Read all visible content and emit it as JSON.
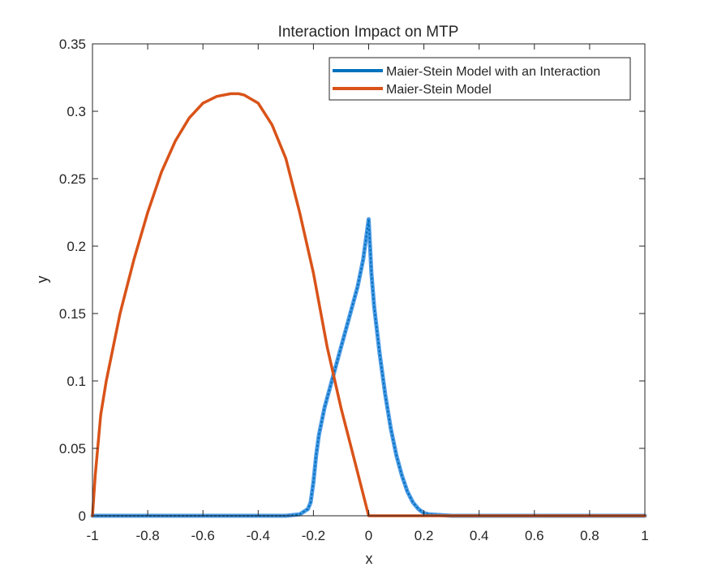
{
  "chart_data": {
    "type": "line",
    "title": "Interaction Impact on MTP",
    "xlabel": "x",
    "ylabel": "y",
    "xlim": [
      -1,
      1
    ],
    "ylim": [
      0,
      0.35
    ],
    "xticks": [
      -1,
      -0.8,
      -0.6,
      -0.4,
      -0.2,
      0,
      0.2,
      0.4,
      0.6,
      0.8,
      1
    ],
    "xtick_labels": [
      "-1",
      "-0.8",
      "-0.6",
      "-0.4",
      "-0.2",
      "0",
      "0.2",
      "0.4",
      "0.6",
      "0.8",
      "1"
    ],
    "yticks": [
      0,
      0.05,
      0.1,
      0.15,
      0.2,
      0.25,
      0.3,
      0.35
    ],
    "ytick_labels": [
      "0",
      "0.05",
      "0.1",
      "0.15",
      "0.2",
      "0.25",
      "0.3",
      "0.35"
    ],
    "grid": false,
    "legend_position": "top-right",
    "series": [
      {
        "name": "Maier-Stein Model with an Interaction",
        "color": "#0072BD",
        "scatter_color": "#4D9BE6",
        "x": [
          -1,
          -0.8,
          -0.6,
          -0.4,
          -0.3,
          -0.25,
          -0.22,
          -0.21,
          -0.2,
          -0.19,
          -0.18,
          -0.16,
          -0.14,
          -0.12,
          -0.1,
          -0.08,
          -0.06,
          -0.04,
          -0.02,
          -0.01,
          0,
          0.005,
          0.01,
          0.02,
          0.04,
          0.06,
          0.08,
          0.1,
          0.12,
          0.14,
          0.16,
          0.18,
          0.2,
          0.22,
          0.3,
          0.5,
          0.7,
          1
        ],
        "y": [
          0,
          0,
          0,
          0,
          0,
          0.001,
          0.005,
          0.01,
          0.025,
          0.045,
          0.06,
          0.08,
          0.095,
          0.11,
          0.125,
          0.14,
          0.155,
          0.17,
          0.19,
          0.205,
          0.22,
          0.2,
          0.18,
          0.155,
          0.12,
          0.09,
          0.065,
          0.045,
          0.03,
          0.018,
          0.01,
          0.005,
          0.002,
          0.001,
          0,
          0,
          0,
          0
        ]
      },
      {
        "name": "Maier-Stein Model",
        "color": "#D95319",
        "x": [
          -1,
          -0.99,
          -0.97,
          -0.95,
          -0.9,
          -0.85,
          -0.8,
          -0.75,
          -0.7,
          -0.65,
          -0.6,
          -0.55,
          -0.5,
          -0.47,
          -0.45,
          -0.4,
          -0.35,
          -0.3,
          -0.25,
          -0.2,
          -0.15,
          -0.1,
          -0.05,
          0,
          0.2,
          0.4,
          0.6,
          0.8,
          1
        ],
        "y": [
          0,
          0.03,
          0.075,
          0.1,
          0.15,
          0.19,
          0.225,
          0.255,
          0.278,
          0.295,
          0.306,
          0.311,
          0.313,
          0.313,
          0.312,
          0.306,
          0.29,
          0.265,
          0.225,
          0.18,
          0.125,
          0.08,
          0.04,
          0,
          0,
          0,
          0,
          0,
          0
        ]
      }
    ]
  }
}
